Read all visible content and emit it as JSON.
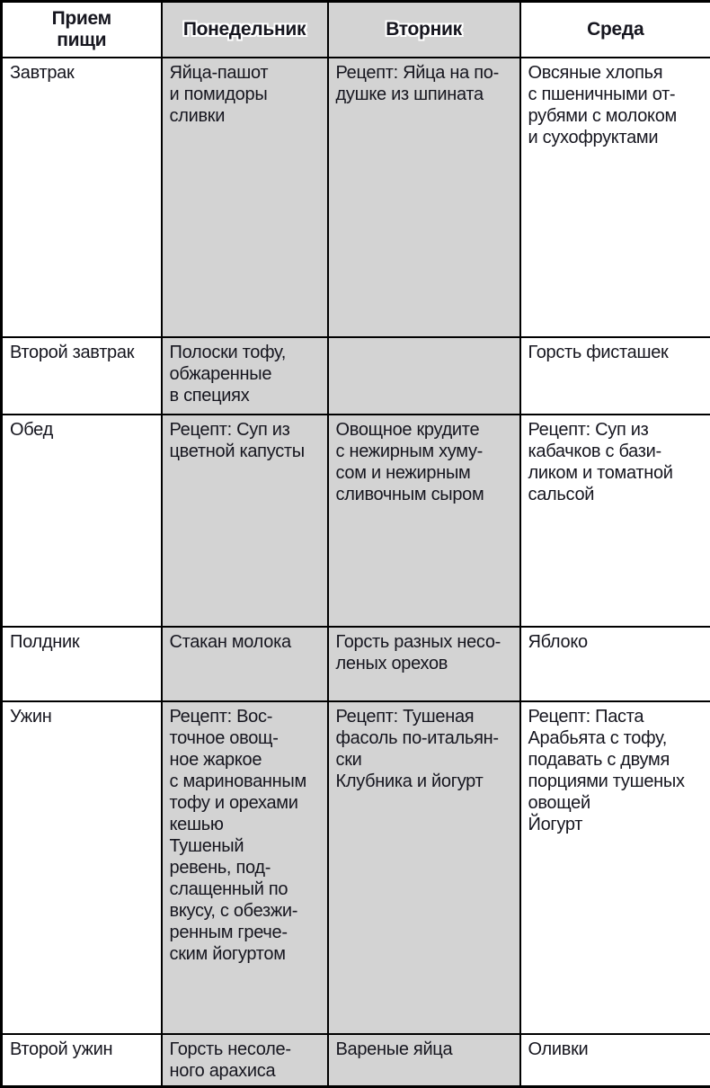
{
  "colors": {
    "shaded_column_bg": "#d3d3d3",
    "border": "#000000",
    "text": "#16161f"
  },
  "table": {
    "header": [
      "Прием\nпищи",
      "Понедельник",
      "Вторник",
      "Среда"
    ],
    "rows": [
      [
        "Завтрак",
        "Яйца-пашот\nи помидоры\nсливки",
        "Рецепт: Яйца на по-\nдушке из шпината",
        "Овсяные хлопья\nс пшеничными от-\nрубями с молоком\nи сухофруктами"
      ],
      [
        "Второй завтрак",
        "Полоски тофу,\nобжаренные\nв специях",
        "",
        "Горсть фисташек"
      ],
      [
        "Обед",
        "Рецепт: Суп из\nцветной капусты",
        "Овощное крудите\nс нежирным хуму-\nсом и нежирным\nсливочным сыром",
        "Рецепт: Суп из\nкабачков с бази-\nликом и томатной\nсальсой"
      ],
      [
        "Полдник",
        "Стакан молока",
        "Горсть разных несо-\nленых орехов",
        "Яблоко"
      ],
      [
        "Ужин",
        "Рецепт: Вос-\nточное овощ-\nное жаркое\nс маринованным\nтофу и орехами\nкешью\nТушеный\nревень, под-\nслащенный по\nвкусу, с обезжи-\nренным грече-\nским йогуртом",
        "Рецепт: Тушеная\nфасоль по-итальян-\nски\nКлубника и йогурт",
        "Рецепт: Паста\nАрабьята с тофу,\nподавать с двумя\nпорциями тушеных\nовощей\nЙогурт"
      ],
      [
        "Второй ужин",
        "Горсть несоле-\nного арахиса",
        "Вареные яйца",
        "Оливки"
      ]
    ]
  }
}
